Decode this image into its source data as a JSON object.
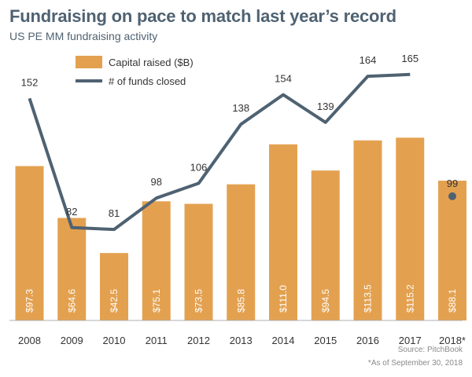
{
  "title": "Fundraising on pace to match last year’s record",
  "subtitle": "US PE MM fundraising activity",
  "source": "Source: PitchBook",
  "footnote": "*As of September 30, 2018",
  "colors": {
    "bar": "#e3a150",
    "line": "#4f6272",
    "text": "#333333"
  },
  "chart_data": {
    "type": "bar",
    "categories": [
      "2008",
      "2009",
      "2010",
      "2011",
      "2012",
      "2013",
      "2014",
      "2015",
      "2016",
      "2017",
      "2018*"
    ],
    "series": [
      {
        "name": "Capital raised ($B)",
        "type": "bar",
        "values": [
          97.3,
          64.6,
          42.5,
          75.1,
          73.5,
          85.8,
          111.0,
          94.5,
          113.5,
          115.2,
          88.1
        ],
        "labels": [
          "$97.3",
          "$64.6",
          "$42.5",
          "$75.1",
          "$73.5",
          "$85.8",
          "$111.0",
          "$94.5",
          "$113.5",
          "$115.2",
          "$88.1"
        ]
      },
      {
        "name": "# of funds closed",
        "type": "line",
        "values": [
          152,
          82,
          81,
          98,
          106,
          138,
          154,
          139,
          164,
          165,
          99
        ],
        "labels": [
          "152",
          "82",
          "81",
          "98",
          "106",
          "138",
          "154",
          "139",
          "164",
          "165",
          "99"
        ]
      }
    ],
    "legend_position": "top-left",
    "grid": false,
    "last_point_marker_only": true
  }
}
